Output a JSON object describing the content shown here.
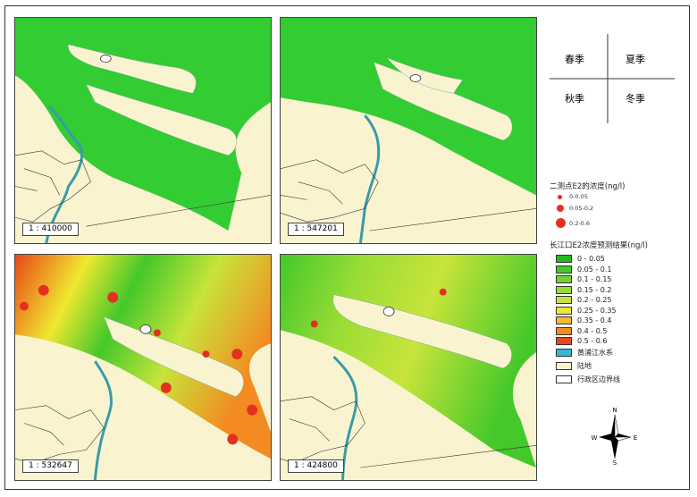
{
  "panels": [
    {
      "scale": "1 : 410000",
      "fill": "#33cc33"
    },
    {
      "scale": "1 : 547201",
      "fill": "#33cc33"
    },
    {
      "scale": "1 : 532647",
      "fill": "gradient-yellow-red"
    },
    {
      "scale": "1 : 424800",
      "fill": "gradient-green-yellow"
    }
  ],
  "seasons": {
    "spring": "春季",
    "summer": "夏季",
    "autumn": "秋季",
    "winter": "冬季"
  },
  "legend": {
    "points_title": "二测点E2的浓度(ng/l)",
    "point_sizes": [
      "0-0.05",
      "0.05-0.2",
      "0.2-0.6"
    ],
    "surface_title": "长江口E2浓度预测结果(ng/l)",
    "classes": [
      {
        "label": "0 - 0.05",
        "color": "#22bb22"
      },
      {
        "label": "0.05 - 0.1",
        "color": "#44c82a"
      },
      {
        "label": "0.1 - 0.15",
        "color": "#6fd232"
      },
      {
        "label": "0.15 - 0.2",
        "color": "#99dc36"
      },
      {
        "label": "0.2 - 0.25",
        "color": "#c8e43a"
      },
      {
        "label": "0.25 - 0.35",
        "color": "#f0e830"
      },
      {
        "label": "0.35 - 0.4",
        "color": "#f8b830"
      },
      {
        "label": "0.4 - 0.5",
        "color": "#f38a22"
      },
      {
        "label": "0.5 - 0.6",
        "color": "#e84818"
      }
    ],
    "water_label": "黄浦江水系",
    "land_label": "陆地",
    "boundary_label": "行政区边界线"
  },
  "north": {
    "n": "N",
    "s": "S",
    "e": "E",
    "w": "W"
  }
}
